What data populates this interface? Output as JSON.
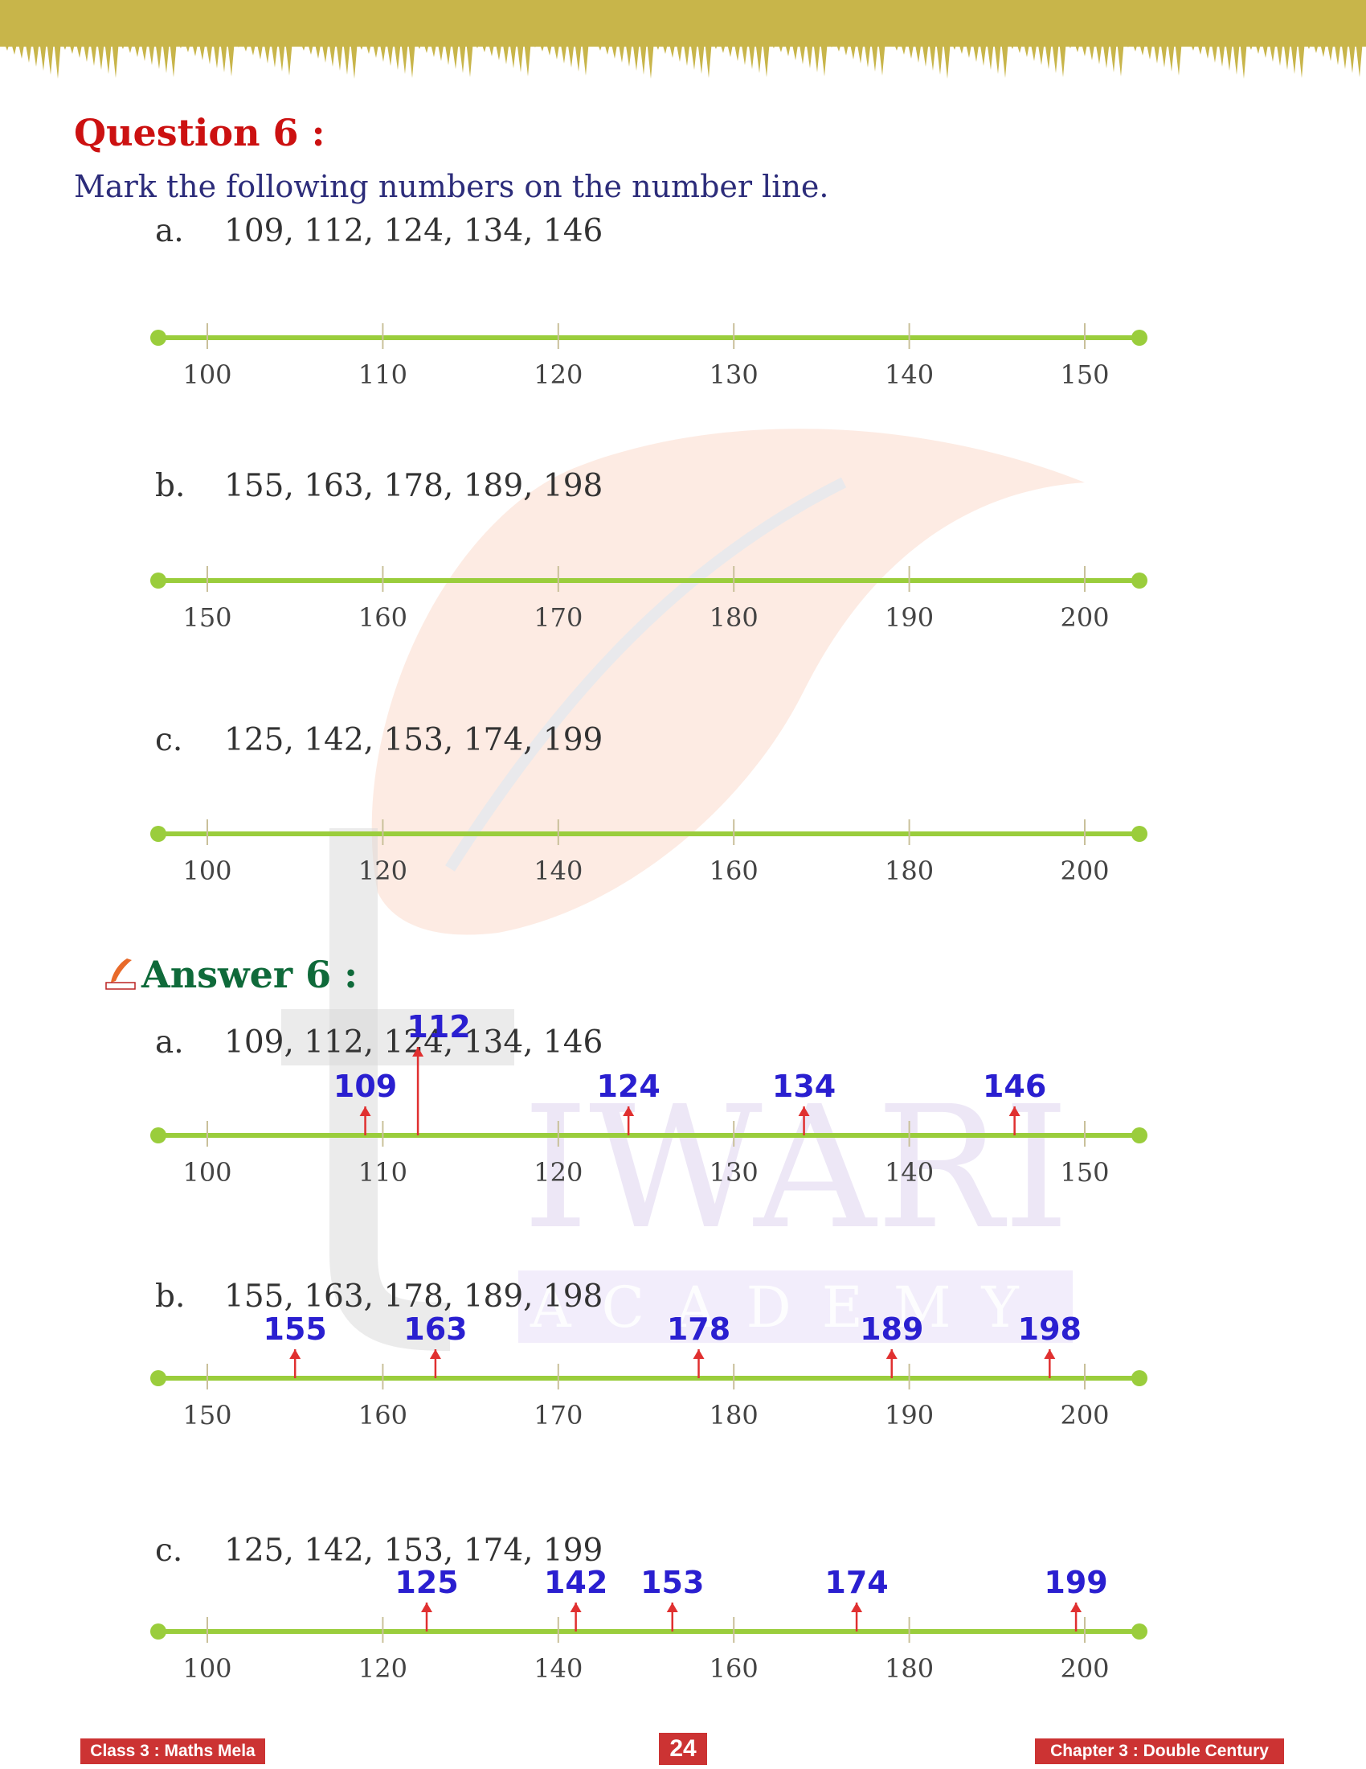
{
  "question": {
    "title": "Question 6 :",
    "instruction": "Mark the following numbers on the number line.",
    "items": [
      {
        "label": "a.",
        "text": "109, 112, 124, 134, 146"
      },
      {
        "label": "b.",
        "text": "155, 163, 178, 189, 198"
      },
      {
        "label": "c.",
        "text": "125, 142, 153, 174, 199"
      }
    ]
  },
  "answer": {
    "title": "Answer 6 :",
    "items": [
      {
        "label": "a.",
        "text": "109, 112, 124, 134, 146"
      },
      {
        "label": "b.",
        "text": "155, 163, 178, 189, 198"
      },
      {
        "label": "c.",
        "text": "125, 142, 153, 174, 199"
      }
    ]
  },
  "number_lines": [
    {
      "ticks": [
        "100",
        "110",
        "120",
        "130",
        "140",
        "150"
      ],
      "start": 100,
      "end": 150,
      "marks": []
    },
    {
      "ticks": [
        "150",
        "160",
        "170",
        "180",
        "190",
        "200"
      ],
      "start": 150,
      "end": 200,
      "marks": []
    },
    {
      "ticks": [
        "100",
        "120",
        "140",
        "160",
        "180",
        "200"
      ],
      "start": 100,
      "end": 200,
      "marks": []
    },
    {
      "ticks": [
        "100",
        "110",
        "120",
        "130",
        "140",
        "150"
      ],
      "start": 100,
      "end": 150,
      "marks": [
        109,
        112,
        124,
        134,
        146
      ]
    },
    {
      "ticks": [
        "150",
        "160",
        "170",
        "180",
        "190",
        "200"
      ],
      "start": 150,
      "end": 200,
      "marks": [
        155,
        163,
        178,
        189,
        198
      ]
    },
    {
      "ticks": [
        "100",
        "120",
        "140",
        "160",
        "180",
        "200"
      ],
      "start": 100,
      "end": 200,
      "marks": [
        125,
        142,
        153,
        174,
        199
      ]
    }
  ],
  "watermark": {
    "word1": "IWARI",
    "word2": "ACADEMY"
  },
  "footer": {
    "left": "Class 3 : Maths Mela",
    "page": "24",
    "right": "Chapter 3 : Double Century"
  },
  "colors": {
    "line": "#9acd3c",
    "arrow": "#e03030",
    "mark_label": "#2a1fd0",
    "question_title": "#cc1111",
    "answer_title": "#0f6a3a",
    "banner": "#c8b54a"
  }
}
